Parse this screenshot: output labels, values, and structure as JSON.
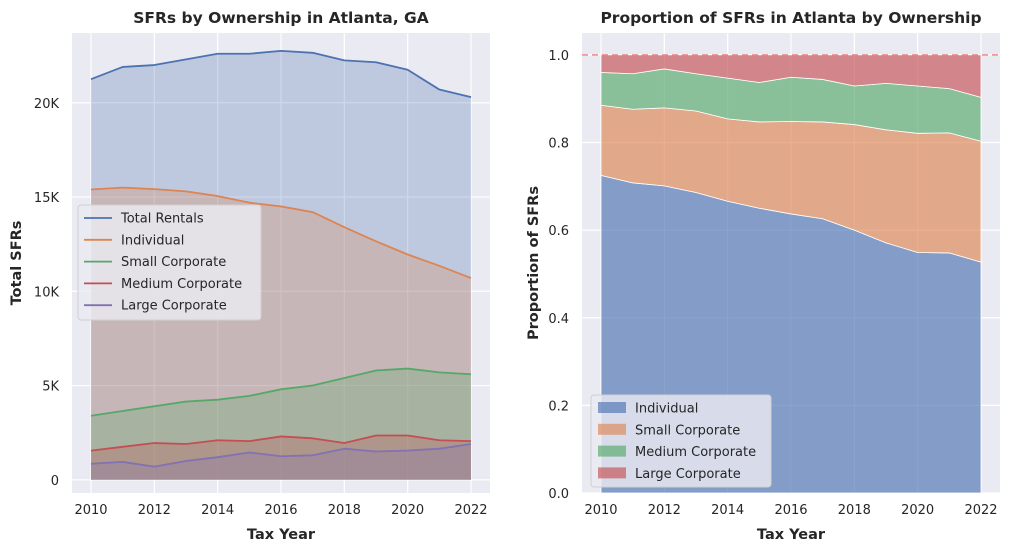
{
  "chart_data": [
    {
      "type": "area",
      "title": "SFRs by Ownership in Atlanta, GA",
      "xlabel": "Tax Year",
      "ylabel": "Total SFRs",
      "x": [
        2010,
        2011,
        2012,
        2013,
        2014,
        2015,
        2016,
        2017,
        2018,
        2019,
        2020,
        2021,
        2022
      ],
      "xticks": [
        2010,
        2012,
        2014,
        2016,
        2018,
        2020,
        2022
      ],
      "xtick_labels": [
        "2010",
        "2012",
        "2014",
        "2016",
        "2018",
        "2020",
        "2022"
      ],
      "xlim": [
        2009.4,
        2022.6
      ],
      "yticks": [
        0,
        5000,
        10000,
        15000,
        20000
      ],
      "ytick_labels": [
        "0",
        "5K",
        "10K",
        "15K",
        "20K"
      ],
      "ylim": [
        -700,
        23700
      ],
      "grid": true,
      "legend_position": "center-left",
      "series": [
        {
          "name": "Total Rentals",
          "color": "#4c72b0",
          "values": [
            21250,
            21900,
            22000,
            22300,
            22600,
            22600,
            22750,
            22650,
            22250,
            22150,
            21750,
            20700,
            20300
          ]
        },
        {
          "name": "Individual",
          "color": "#dd8452",
          "values": [
            15400,
            15500,
            15420,
            15300,
            15050,
            14700,
            14500,
            14200,
            13400,
            12650,
            11950,
            11350,
            10700
          ]
        },
        {
          "name": "Small Corporate",
          "color": "#55a868",
          "values": [
            3400,
            3650,
            3900,
            4150,
            4250,
            4450,
            4800,
            5000,
            5400,
            5800,
            5900,
            5700,
            5600
          ]
        },
        {
          "name": "Medium Corporate",
          "color": "#c44e52",
          "values": [
            1550,
            1750,
            1950,
            1900,
            2100,
            2050,
            2300,
            2200,
            1950,
            2350,
            2350,
            2100,
            2050
          ]
        },
        {
          "name": "Large Corporate",
          "color": "#8172b3",
          "values": [
            850,
            950,
            700,
            1000,
            1200,
            1450,
            1250,
            1300,
            1650,
            1500,
            1550,
            1650,
            1900
          ]
        }
      ]
    },
    {
      "type": "area",
      "stacked": true,
      "title": "Proportion of SFRs in Atlanta by Ownership",
      "xlabel": "Tax Year",
      "ylabel": "Proportion of SFRs",
      "x": [
        2010,
        2011,
        2012,
        2013,
        2014,
        2015,
        2016,
        2017,
        2018,
        2019,
        2020,
        2021,
        2022
      ],
      "xticks": [
        2010,
        2012,
        2014,
        2016,
        2018,
        2020,
        2022
      ],
      "xtick_labels": [
        "2010",
        "2012",
        "2014",
        "2016",
        "2018",
        "2020",
        "2022"
      ],
      "xlim": [
        2009.4,
        2022.6
      ],
      "yticks": [
        0,
        0.2,
        0.4,
        0.6,
        0.8,
        1.0
      ],
      "ytick_labels": [
        "0.0",
        "0.2",
        "0.4",
        "0.6",
        "0.8",
        "1.0"
      ],
      "ylim": [
        0,
        1.05
      ],
      "reference_line": {
        "y": 1.0,
        "color": "#f08080",
        "style": "dashed"
      },
      "grid": true,
      "legend_position": "lower-left",
      "series": [
        {
          "name": "Individual",
          "color": "#4c72b0",
          "values": [
            0.725,
            0.708,
            0.701,
            0.686,
            0.666,
            0.65,
            0.637,
            0.626,
            0.6,
            0.571,
            0.549,
            0.548,
            0.527
          ]
        },
        {
          "name": "Small Corporate",
          "color": "#dd8452",
          "values": [
            0.16,
            0.168,
            0.178,
            0.186,
            0.188,
            0.197,
            0.211,
            0.221,
            0.241,
            0.258,
            0.272,
            0.274,
            0.276
          ]
        },
        {
          "name": "Medium Corporate",
          "color": "#55a868",
          "values": [
            0.075,
            0.081,
            0.089,
            0.085,
            0.093,
            0.09,
            0.101,
            0.097,
            0.088,
            0.106,
            0.108,
            0.101,
            0.1
          ]
        },
        {
          "name": "Large Corporate",
          "color": "#c44e52",
          "values": [
            0.04,
            0.043,
            0.032,
            0.043,
            0.053,
            0.063,
            0.051,
            0.056,
            0.071,
            0.065,
            0.071,
            0.077,
            0.097
          ]
        }
      ]
    }
  ]
}
